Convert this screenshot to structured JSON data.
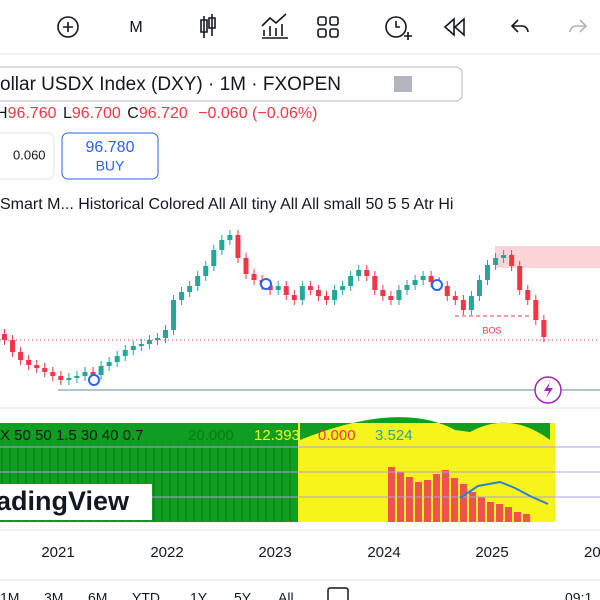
{
  "toolbar": {
    "interval": "M"
  },
  "symbol": {
    "title": "ollar USDX Index (DXY) · 1M · FXOPEN"
  },
  "ohlc": {
    "h_label": "H",
    "h": "96.760",
    "l_label": "L",
    "l": "96.700",
    "c_label": "C",
    "c": "96.720",
    "change": "−0.060 (−0.06%)"
  },
  "trade": {
    "spread": "0.060",
    "buy_price": "96.780",
    "buy_label": "BUY"
  },
  "indicator": {
    "text": "Smart M... Historical Colored All All tiny All All small 50 5 5 Atr Hi",
    "bos": "BOS"
  },
  "lower_pane": {
    "params": "X 50 50 1.5 30 40 0.7",
    "v1": "20.000",
    "v2": "12.393",
    "v3": "0.000",
    "v4": "3.524",
    "logo": "adingView"
  },
  "x_axis": [
    "2021",
    "2022",
    "2023",
    "2024",
    "2025",
    "20"
  ],
  "bottom_bar": {
    "ranges": [
      "1M",
      "3M",
      "6M",
      "YTD",
      "1Y",
      "5Y",
      "All"
    ],
    "time": "09:1"
  }
}
